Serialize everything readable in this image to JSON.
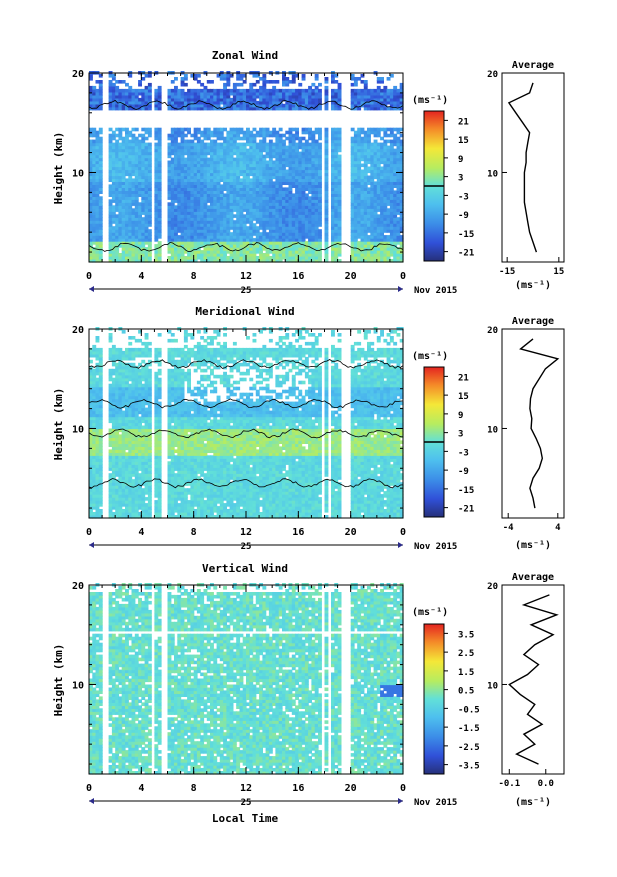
{
  "figure": {
    "xlabel": "Local Time",
    "date_label": "Nov 2015",
    "day_label": "25",
    "unit_label": "(ms⁻¹)",
    "average_title": "Average",
    "ylabel": "Height (km)"
  },
  "chart_data": [
    {
      "type": "heatmap",
      "title": "Zonal Wind",
      "xlabel": "Local Time",
      "ylabel": "Height (km)",
      "x_ticks": [
        "0",
        "4",
        "8",
        "12",
        "16",
        "20",
        "0"
      ],
      "xlim": [
        0,
        24
      ],
      "y_ticks": [
        "20",
        "10"
      ],
      "ylim": [
        1,
        20
      ],
      "colorbar": {
        "unit": "(ms⁻¹)",
        "ticks": [
          "21",
          "15",
          "9",
          "3",
          "-3",
          "-9",
          "-15",
          "-21"
        ],
        "range": [
          -24,
          24
        ]
      },
      "average_profile": {
        "title": "Average",
        "x_ticks": [
          "-15",
          "15"
        ],
        "xlim": [
          -18,
          18
        ],
        "xlabel": "(ms⁻¹)",
        "y_ticks": [
          "20",
          "10"
        ],
        "height_km": [
          2,
          3,
          4,
          5,
          6,
          7,
          8,
          9,
          10,
          11,
          12,
          13,
          14,
          15,
          16,
          17,
          18,
          19
        ],
        "values": [
          2,
          0,
          -2,
          -3,
          -4,
          -5,
          -5,
          -5,
          -5,
          -4,
          -4,
          -3,
          -2,
          -6,
          -10,
          -14,
          -2,
          0
        ]
      }
    },
    {
      "type": "heatmap",
      "title": "Meridional Wind",
      "xlabel": "Local Time",
      "ylabel": "Height (km)",
      "x_ticks": [
        "0",
        "4",
        "8",
        "12",
        "16",
        "20",
        "0"
      ],
      "xlim": [
        0,
        24
      ],
      "y_ticks": [
        "20",
        "10"
      ],
      "ylim": [
        1,
        20
      ],
      "colorbar": {
        "unit": "(ms⁻¹)",
        "ticks": [
          "21",
          "15",
          "9",
          "3",
          "-3",
          "-9",
          "-15",
          "-21"
        ],
        "range": [
          -24,
          24
        ]
      },
      "average_profile": {
        "title": "Average",
        "x_ticks": [
          "-4",
          "4"
        ],
        "xlim": [
          -5,
          5
        ],
        "xlabel": "(ms⁻¹)",
        "y_ticks": [
          "20",
          "10"
        ],
        "height_km": [
          2,
          3,
          4,
          5,
          6,
          7,
          8,
          9,
          10,
          11,
          12,
          13,
          14,
          15,
          16,
          17,
          18,
          19
        ],
        "values": [
          0.3,
          0,
          -0.5,
          0,
          1,
          1.5,
          1.2,
          0.5,
          -0.3,
          -0.2,
          -0.5,
          -0.4,
          0,
          1,
          2,
          4,
          -2,
          0
        ]
      }
    },
    {
      "type": "heatmap",
      "title": "Vertical Wind",
      "xlabel": "Local Time",
      "ylabel": "Height (km)",
      "x_ticks": [
        "0",
        "4",
        "8",
        "12",
        "16",
        "20",
        "0"
      ],
      "xlim": [
        0,
        24
      ],
      "y_ticks": [
        "20",
        "10"
      ],
      "ylim": [
        1,
        20
      ],
      "colorbar": {
        "unit": "(ms⁻¹)",
        "ticks": [
          "3.5",
          "2.5",
          "1.5",
          "0.5",
          "-0.5",
          "-1.5",
          "-2.5",
          "-3.5"
        ],
        "range": [
          -4,
          4
        ]
      },
      "average_profile": {
        "title": "Average",
        "x_ticks": [
          "-0.1",
          "0.0"
        ],
        "xlim": [
          -0.12,
          0.05
        ],
        "xlabel": "(ms⁻¹)",
        "y_ticks": [
          "20",
          "10"
        ],
        "height_km": [
          2,
          3,
          4,
          5,
          6,
          7,
          8,
          9,
          10,
          11,
          12,
          13,
          14,
          15,
          16,
          17,
          18,
          19
        ],
        "values": [
          -0.02,
          -0.08,
          -0.03,
          -0.06,
          -0.01,
          -0.05,
          -0.03,
          -0.07,
          -0.1,
          -0.05,
          -0.02,
          -0.06,
          -0.03,
          0.02,
          -0.04,
          0.03,
          -0.06,
          0.01
        ]
      }
    }
  ]
}
